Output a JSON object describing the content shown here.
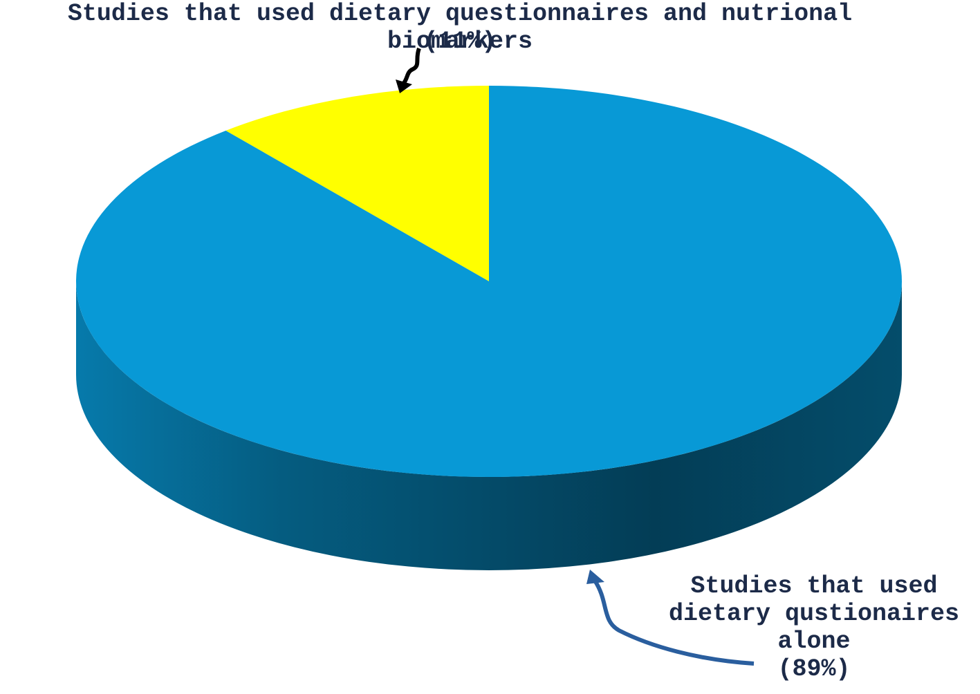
{
  "chart_data": {
    "type": "pie3d",
    "categories": [
      "Studies that used dietary questionnaires and nutrional biomarkers",
      "Studies that used dietary qustionaires alone"
    ],
    "values": [
      11,
      89
    ],
    "value_labels": [
      "(11%)",
      "(89%)"
    ],
    "colors": [
      "#ffff00",
      "#0899d6"
    ]
  }
}
